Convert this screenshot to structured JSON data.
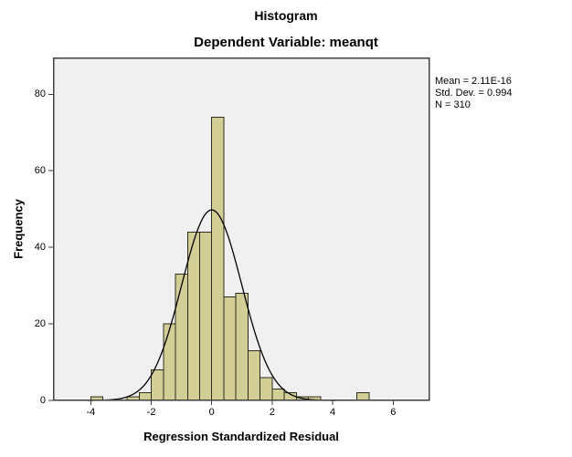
{
  "title": "Histogram",
  "subtitle": "Dependent Variable: meanqt",
  "stats": {
    "mean_label": "Mean = 2.11E-16",
    "stddev_label": "Std. Dev. = 0.994",
    "n_label": "N = 310"
  },
  "chart_data": {
    "type": "bar",
    "subtype": "histogram",
    "title": "Histogram",
    "subtitle": "Dependent Variable: meanqt",
    "xlabel": "Regression Standardized Residual",
    "ylabel": "Frequency",
    "xlim": [
      -5.25,
      7.2
    ],
    "ylim": [
      0,
      89.6
    ],
    "xticks": [
      -4,
      -2,
      0,
      2,
      4,
      6
    ],
    "yticks": [
      0,
      20,
      40,
      60,
      80
    ],
    "grid": false,
    "legend_position": "none",
    "bin_width": 0.4,
    "bins": [
      {
        "start": -4.0,
        "count": 1
      },
      {
        "start": -3.6,
        "count": 0
      },
      {
        "start": -3.2,
        "count": 0
      },
      {
        "start": -2.8,
        "count": 1
      },
      {
        "start": -2.4,
        "count": 2
      },
      {
        "start": -2.0,
        "count": 8
      },
      {
        "start": -1.6,
        "count": 20
      },
      {
        "start": -1.2,
        "count": 33
      },
      {
        "start": -0.8,
        "count": 44
      },
      {
        "start": -0.4,
        "count": 44
      },
      {
        "start": 0.0,
        "count": 74
      },
      {
        "start": 0.4,
        "count": 27
      },
      {
        "start": 0.8,
        "count": 28
      },
      {
        "start": 1.2,
        "count": 13
      },
      {
        "start": 1.6,
        "count": 6
      },
      {
        "start": 2.0,
        "count": 3
      },
      {
        "start": 2.4,
        "count": 2
      },
      {
        "start": 2.8,
        "count": 1
      },
      {
        "start": 3.2,
        "count": 1
      },
      {
        "start": 3.6,
        "count": 0
      },
      {
        "start": 4.0,
        "count": 0
      },
      {
        "start": 4.4,
        "count": 0
      },
      {
        "start": 4.8,
        "count": 2
      }
    ],
    "normal_curve": {
      "mean": 0,
      "sd": 0.994,
      "n": 310,
      "draw_range": [
        -4.1,
        4.1
      ]
    },
    "colors": {
      "bar_fill": "#d3ce96",
      "bar_stroke": "#2e2c1e",
      "curve": "#000000",
      "plot_bg": "#f0f0f0",
      "frame": "#3f3f3f",
      "tick": "#3f3f3f",
      "page_bg": "#ffffff"
    }
  }
}
